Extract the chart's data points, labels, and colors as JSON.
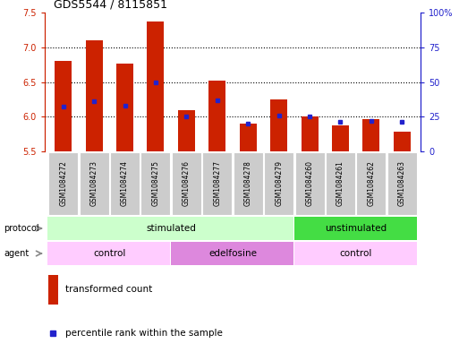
{
  "title": "GDS5544 / 8115851",
  "samples": [
    "GSM1084272",
    "GSM1084273",
    "GSM1084274",
    "GSM1084275",
    "GSM1084276",
    "GSM1084277",
    "GSM1084278",
    "GSM1084279",
    "GSM1084260",
    "GSM1084261",
    "GSM1084262",
    "GSM1084263"
  ],
  "transformed_count": [
    6.8,
    7.1,
    6.77,
    7.37,
    6.1,
    6.52,
    5.9,
    6.25,
    6.0,
    5.87,
    5.97,
    5.78
  ],
  "percentile_rank": [
    32,
    36,
    33,
    50,
    25,
    37,
    20,
    26,
    25,
    21,
    22,
    21
  ],
  "bar_bottom": 5.5,
  "ylim_left": [
    5.5,
    7.5
  ],
  "ylim_right": [
    0,
    100
  ],
  "yticks_left": [
    5.5,
    6.0,
    6.5,
    7.0,
    7.5
  ],
  "yticks_right": [
    0,
    25,
    50,
    75,
    100
  ],
  "ytick_labels_right": [
    "0",
    "25",
    "50",
    "75",
    "100%"
  ],
  "bar_color": "#cc2200",
  "dot_color": "#2222cc",
  "protocol_groups": [
    {
      "label": "stimulated",
      "start": 0,
      "end": 8,
      "color": "#ccffcc"
    },
    {
      "label": "unstimulated",
      "start": 8,
      "end": 12,
      "color": "#44dd44"
    }
  ],
  "agent_groups": [
    {
      "label": "control",
      "start": 0,
      "end": 4,
      "color": "#ffccff"
    },
    {
      "label": "edelfosine",
      "start": 4,
      "end": 8,
      "color": "#dd88dd"
    },
    {
      "label": "control",
      "start": 8,
      "end": 12,
      "color": "#ffccff"
    }
  ],
  "legend_bar_label": "transformed count",
  "legend_dot_label": "percentile rank within the sample",
  "protocol_label": "protocol",
  "agent_label": "agent",
  "bg_color": "#ffffff",
  "sample_bg_color": "#cccccc",
  "bar_width": 0.55
}
